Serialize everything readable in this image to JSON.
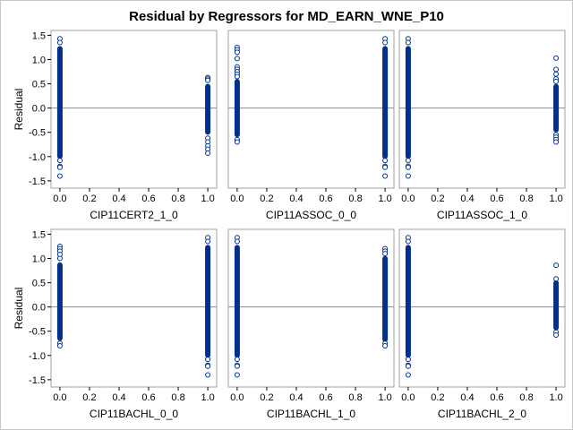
{
  "chart_data": {
    "type": "scatter",
    "title": "Residual by Regressors for MD_EARN_WNE_P10",
    "ylabel": "Residual",
    "ylim": [
      -1.65,
      1.6
    ],
    "xlim": [
      -0.06,
      1.06
    ],
    "xticks": [
      "0.0",
      "0.2",
      "0.4",
      "0.6",
      "0.8",
      "1.0"
    ],
    "yticks": [
      "-1.5",
      "-1.0",
      "-0.5",
      "0.0",
      "0.5",
      "1.0",
      "1.5"
    ],
    "reference_line": 0,
    "marker_color": "#00308a",
    "panels": [
      {
        "xlabel": "CIP11CERT2_1_0",
        "columns": [
          {
            "x": 0,
            "bar": [
              -1.05,
              1.28
            ],
            "points": [
              1.43,
              1.35,
              -1.08,
              -1.2,
              -1.22,
              -1.4
            ]
          },
          {
            "x": 1,
            "bar": [
              -0.55,
              0.5
            ],
            "points": [
              0.63,
              0.6,
              0.57,
              -0.62,
              -0.7,
              -0.78,
              -0.85,
              -0.93
            ]
          }
        ]
      },
      {
        "xlabel": "CIP11ASSOC_0_0",
        "columns": [
          {
            "x": 0,
            "bar": [
              -0.6,
              0.6
            ],
            "points": [
              1.25,
              1.2,
              1.15,
              1.02,
              0.85,
              0.8,
              0.75,
              0.7,
              0.65,
              -0.65,
              -0.7
            ]
          },
          {
            "x": 1,
            "bar": [
              -1.05,
              1.28
            ],
            "points": [
              1.43,
              1.35,
              -1.08,
              -1.2,
              -1.22,
              -1.4
            ]
          }
        ]
      },
      {
        "xlabel": "CIP11ASSOC_1_0",
        "columns": [
          {
            "x": 0,
            "bar": [
              -1.05,
              1.28
            ],
            "points": [
              1.43,
              1.35,
              -1.08,
              -1.2,
              -1.22,
              -1.4
            ]
          },
          {
            "x": 1,
            "bar": [
              -0.5,
              0.5
            ],
            "points": [
              1.03,
              0.8,
              0.7,
              0.6,
              0.55,
              -0.55,
              -0.6,
              -0.65,
              -0.7
            ]
          }
        ]
      },
      {
        "xlabel": "CIP11BACHL_0_0",
        "columns": [
          {
            "x": 0,
            "bar": [
              -0.7,
              0.92
            ],
            "points": [
              1.25,
              1.2,
              1.15,
              1.08,
              1.0,
              -0.75,
              -0.8
            ]
          },
          {
            "x": 1,
            "bar": [
              -1.05,
              1.28
            ],
            "points": [
              1.43,
              1.35,
              -1.08,
              -1.2,
              -1.22,
              -1.4
            ]
          }
        ]
      },
      {
        "xlabel": "CIP11BACHL_1_0",
        "columns": [
          {
            "x": 0,
            "bar": [
              -1.05,
              1.28
            ],
            "points": [
              1.43,
              1.35,
              -1.08,
              -1.2,
              -1.22,
              -1.4
            ]
          },
          {
            "x": 1,
            "bar": [
              -0.72,
              1.05
            ],
            "points": [
              1.2,
              1.15,
              1.1,
              -0.75,
              -0.8
            ]
          }
        ]
      },
      {
        "xlabel": "CIP11BACHL_2_0",
        "columns": [
          {
            "x": 0,
            "bar": [
              -1.05,
              1.28
            ],
            "points": [
              1.43,
              1.35,
              -1.08,
              -1.2,
              -1.22,
              -1.4
            ]
          },
          {
            "x": 1,
            "bar": [
              -0.48,
              0.55
            ],
            "points": [
              0.86,
              0.58,
              -0.52,
              -0.58
            ]
          }
        ]
      }
    ]
  }
}
